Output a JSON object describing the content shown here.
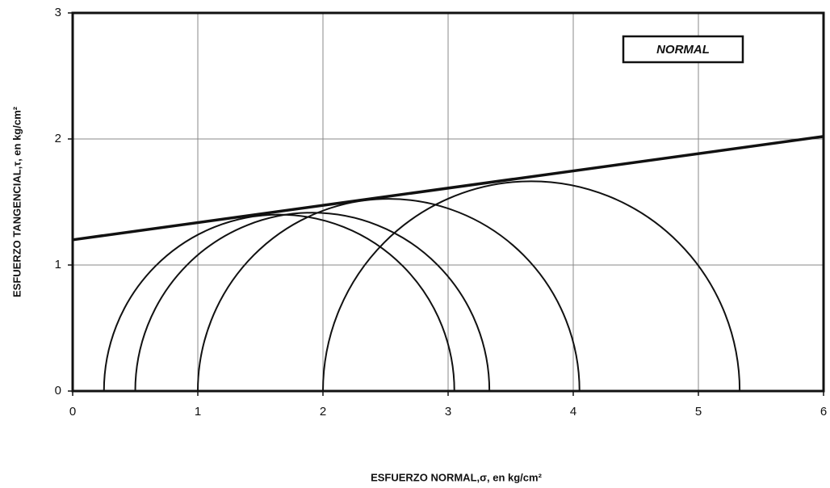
{
  "chart_data": {
    "type": "mohr",
    "xlabel": "ESFUERZO NORMAL,σ, en kg/cm²",
    "ylabel": "ESFUERZO TANGENCIAL,τ, en kg/cm²",
    "annotation": "NORMAL",
    "xlim": [
      0,
      6
    ],
    "xticks": [
      0,
      1,
      2,
      3,
      4,
      5,
      6
    ],
    "ylim": [
      0,
      3
    ],
    "yticks": [
      0,
      1,
      2,
      3
    ],
    "grid": true,
    "color": "#111111",
    "circles": [
      {
        "sigma3": 0.25,
        "sigma1": 3.05
      },
      {
        "sigma3": 0.5,
        "sigma1": 3.33
      },
      {
        "sigma3": 1.0,
        "sigma1": 4.05
      },
      {
        "sigma3": 2.0,
        "sigma1": 5.33
      }
    ],
    "envelope": {
      "x": [
        0,
        6
      ],
      "y": [
        1.2,
        2.02
      ]
    }
  }
}
